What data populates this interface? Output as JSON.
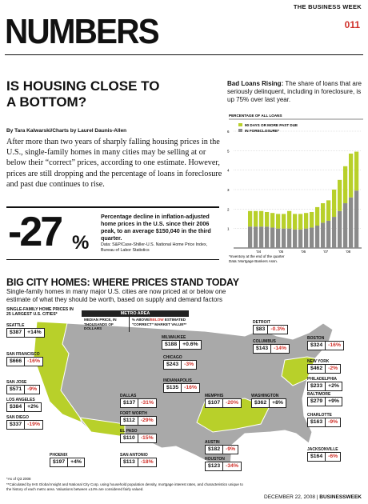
{
  "runner": "THE BUSINESS WEEK",
  "page_number": "011",
  "masthead": "NUMBERS",
  "headline": "IS HOUSING CLOSE TO A BOTTOM?",
  "byline": "By Tara Kalwarski/Charts by Laurel Daunis-Allen",
  "deck": "After more than two years of sharply falling housing prices in the U.S., single-family homes in many cities may be selling at or below their “correct” prices, according to one estimate. However, prices are still dropping and the percentage of loans in foreclosure and past due continues to rise.",
  "stat": {
    "value": "-27",
    "unit": "%",
    "text": "Percentage decline in inflation-adjusted home prices in the U.S. since their 2006 peak, to an average $150,040 in the third quarter.",
    "source": "Data: S&P/Case-Shiller-U.S. National Home Price Index, Bureau of Labor Statistics"
  },
  "loans": {
    "title_bold": "Bad Loans Rising:",
    "title_rest": " The share of loans that are seriously delinquent, including in foreclosure, is up 75% over last year."
  },
  "chart_data": {
    "type": "bar",
    "title": "PERCENTAGE OF ALL LOANS",
    "x_tick_labels": [
      "’04",
      "’05",
      "’06",
      "’07",
      "’08"
    ],
    "ylim": [
      0,
      6
    ],
    "y_ticks": [
      1,
      2,
      3,
      4,
      5,
      6
    ],
    "stacked": true,
    "grid": true,
    "legend_position": "top-left",
    "series": [
      {
        "name": "IN FORECLOSURE*",
        "color": "#8a8a8a",
        "values": [
          1.1,
          1.1,
          1.1,
          1.1,
          1.05,
          1.0,
          1.0,
          1.0,
          0.95,
          0.95,
          1.0,
          1.05,
          1.15,
          1.3,
          1.4,
          1.6,
          1.9,
          2.3,
          2.6,
          2.95
        ]
      },
      {
        "name": "90 DAYS OR MORE PAST DUE",
        "color": "#b8d02a",
        "values": [
          0.8,
          0.8,
          0.8,
          0.75,
          0.75,
          0.75,
          0.75,
          0.9,
          0.8,
          0.8,
          0.8,
          0.8,
          0.95,
          1.0,
          1.05,
          1.4,
          1.6,
          1.9,
          2.25,
          2.0
        ]
      }
    ],
    "footnote": "*Inventory at the end of the quarter",
    "source": "Data: Mortgage Bankers Assn."
  },
  "map": {
    "title": "BIG CITY HOMES: WHERE PRICES STAND TODAY",
    "deck": "Single-family homes in many major U.S. cities are now priced at or below one estimate of what they should be worth, based on supply and demand factors",
    "highlight_color": "#b8d02a",
    "base_color": "#a9a9a9",
    "legend_area": "SINGLE-FAMILY HOME PRICES IN 25 LARGEST U.S. CITIES*",
    "metro_header": "METRO AREA",
    "col_price": "MEDIAN PRICE, IN THOUSANDS OF DOLLARS",
    "col_change_1": "% ABOVE/",
    "col_change_2": "BELOW",
    "col_change_3": " ESTIMATED “CORRECT” MARKET VALUE**",
    "asof": "*As of Q3 2008",
    "note": "**Calculated by IHS Global Insight and National City Corp. using household population density, mortgage interest rates, and characteristics unique to the history of each metro area. Valuations between ±14% are considered fairly valued.",
    "cities": [
      {
        "name": "SEATTLE",
        "price": "$387",
        "change": "+14%"
      },
      {
        "name": "MILWAUKEE",
        "price": "$188",
        "change": "+0.6%"
      },
      {
        "name": "DETROIT",
        "price": "$83",
        "change": "-0.3%"
      },
      {
        "name": "COLUMBUS",
        "price": "$143",
        "change": "-14%"
      },
      {
        "name": "BOSTON",
        "price": "$324",
        "change": "-16%"
      },
      {
        "name": "CHICAGO",
        "price": "$243",
        "change": "-3%"
      },
      {
        "name": "NEW YORK",
        "price": "$462",
        "change": "-2%"
      },
      {
        "name": "INDIANAPOLIS",
        "price": "$135",
        "change": "-16%"
      },
      {
        "name": "PHILADELPHIA",
        "price": "$233",
        "change": "+2%"
      },
      {
        "name": "SAN FRANCISCO",
        "price": "$666",
        "change": "-16%"
      },
      {
        "name": "MEMPHIS",
        "price": "$107",
        "change": "-20%"
      },
      {
        "name": "WASHINGTON",
        "price": "$362",
        "change": "+8%"
      },
      {
        "name": "BALTIMORE",
        "price": "$279",
        "change": "+9%"
      },
      {
        "name": "DALLAS",
        "price": "$137",
        "change": "-31%"
      },
      {
        "name": "SAN JOSE",
        "price": "$571",
        "change": "-9%"
      },
      {
        "name": "FORT WORTH",
        "price": "$112",
        "change": "-29%"
      },
      {
        "name": "CHARLOTTE",
        "price": "$163",
        "change": "-9%"
      },
      {
        "name": "LOS ANGELES",
        "price": "$384",
        "change": "+2%"
      },
      {
        "name": "EL PASO",
        "price": "$110",
        "change": "-15%"
      },
      {
        "name": "SAN DIEGO",
        "price": "$337",
        "change": "-19%"
      },
      {
        "name": "AUSTIN",
        "price": "$182",
        "change": "-9%"
      },
      {
        "name": "JACKSONVILLE",
        "price": "$164",
        "change": "-6%"
      },
      {
        "name": "PHOENIX",
        "price": "$197",
        "change": "+4%"
      },
      {
        "name": "SAN ANTONIO",
        "price": "$113",
        "change": "-18%"
      },
      {
        "name": "HOUSTON",
        "price": "$123",
        "change": "-34%"
      }
    ]
  },
  "footer_date": "DECEMBER 22, 2008 | ",
  "footer_mag": "BUSINESSWEEK"
}
